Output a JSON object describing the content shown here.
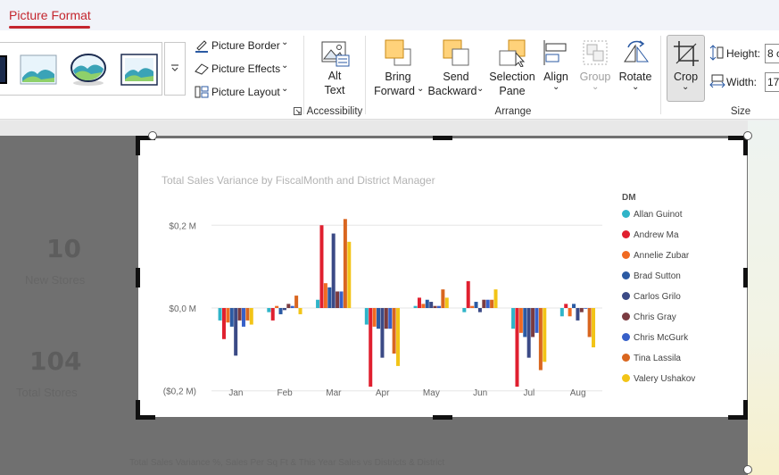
{
  "ribbon": {
    "active_tab": "Picture Format",
    "picture_border": "Picture Border",
    "picture_effects": "Picture Effects",
    "picture_layout": "Picture Layout",
    "alt_text_line1": "Alt",
    "alt_text_line2": "Text",
    "accessibility_group": "Accessibility",
    "bring_forward_line1": "Bring",
    "bring_forward_line2": "Forward",
    "send_backward_line1": "Send",
    "send_backward_line2": "Backward",
    "selection_pane_line1": "Selection",
    "selection_pane_line2": "Pane",
    "align": "Align",
    "group": "Group",
    "rotate": "Rotate",
    "arrange_group": "Arrange",
    "crop": "Crop",
    "height_label": "Height:",
    "height_value": "8 c",
    "width_label": "Width:",
    "width_value": "17",
    "size_group": "Size"
  },
  "slide": {
    "kpi1_value": "10",
    "kpi1_label": "New Stores",
    "kpi2_value": "104",
    "kpi2_label": "Total Stores",
    "footer": "Total Sales Variance %, Sales Per Sq Ft & This Year Sales vs Districts & District"
  },
  "chart_data": {
    "type": "bar",
    "title": "Total Sales Variance by FiscalMonth and District Manager",
    "xlabel": "",
    "ylabel": "",
    "ylim": [
      -0.22,
      0.22
    ],
    "yticks": [
      {
        "value": 0.2,
        "label": "$0,2 M"
      },
      {
        "value": 0.0,
        "label": "$0,0 M"
      },
      {
        "value": -0.2,
        "label": "($0,2 M)"
      }
    ],
    "categories": [
      "Jan",
      "Feb",
      "Mar",
      "Apr",
      "May",
      "Jun",
      "Jul",
      "Aug"
    ],
    "legend_title": "DM",
    "legend_position": "right",
    "grid": true,
    "series": [
      {
        "name": "Allan Guinot",
        "color": "#2fb4c8",
        "values": [
          -0.03,
          -0.01,
          0.02,
          -0.04,
          0.005,
          -0.01,
          -0.05,
          -0.02
        ]
      },
      {
        "name": "Andrew Ma",
        "color": "#e0202f",
        "values": [
          -0.075,
          -0.03,
          0.2,
          -0.19,
          0.025,
          0.065,
          -0.19,
          0.01
        ]
      },
      {
        "name": "Annelie Zubar",
        "color": "#f06a22",
        "values": [
          -0.035,
          0.005,
          0.06,
          -0.045,
          0.01,
          0.005,
          -0.06,
          -0.02
        ]
      },
      {
        "name": "Brad Sutton",
        "color": "#2b5aa3",
        "values": [
          -0.045,
          -0.015,
          0.05,
          -0.05,
          0.02,
          0.015,
          -0.07,
          0.01
        ]
      },
      {
        "name": "Carlos Grilo",
        "color": "#3b4a86",
        "values": [
          -0.115,
          -0.005,
          0.18,
          -0.12,
          0.015,
          -0.01,
          -0.12,
          -0.03
        ]
      },
      {
        "name": "Chris Gray",
        "color": "#7a3b40",
        "values": [
          -0.03,
          0.01,
          0.04,
          -0.05,
          0.005,
          0.02,
          -0.07,
          -0.01
        ]
      },
      {
        "name": "Chris McGurk",
        "color": "#3760c9",
        "values": [
          -0.045,
          0.005,
          0.04,
          -0.05,
          0.005,
          0.02,
          -0.06,
          0.0
        ]
      },
      {
        "name": "Tina Lassila",
        "color": "#d9661f",
        "values": [
          -0.03,
          0.03,
          0.215,
          -0.11,
          0.045,
          0.02,
          -0.15,
          -0.07
        ]
      },
      {
        "name": "Valery Ushakov",
        "color": "#f2c417",
        "values": [
          -0.04,
          -0.015,
          0.16,
          -0.14,
          0.025,
          0.045,
          -0.13,
          -0.095
        ]
      }
    ]
  }
}
